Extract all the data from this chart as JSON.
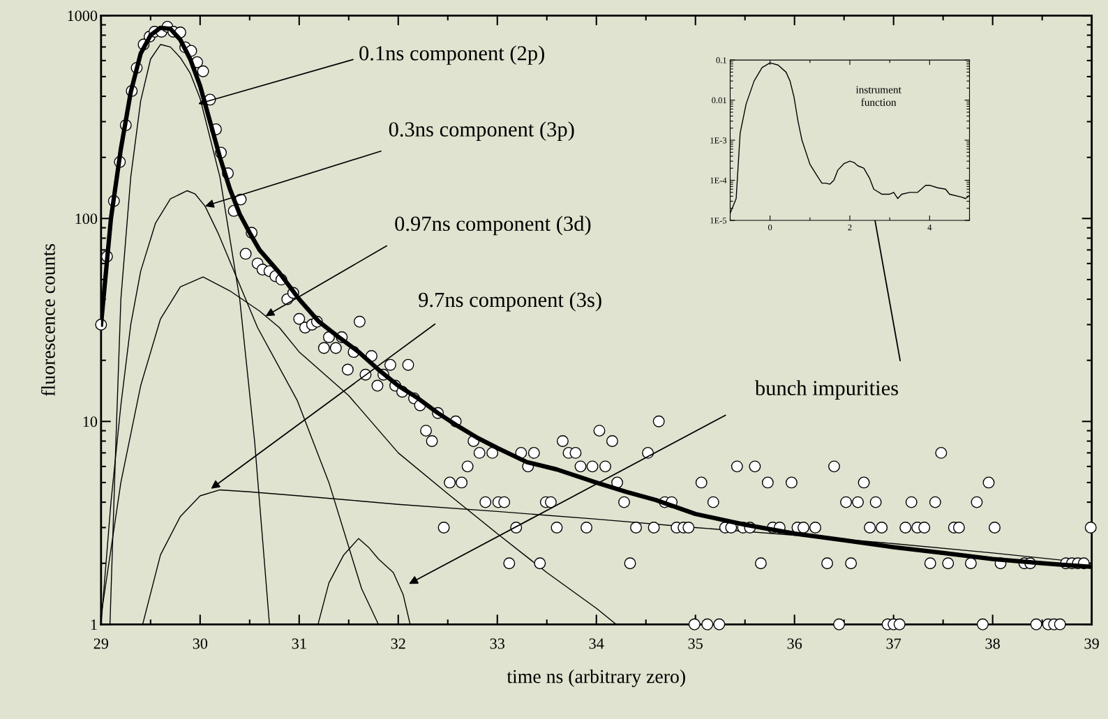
{
  "chart_data": [
    {
      "type": "scatter",
      "xlabel": "time ns (arbitrary zero)",
      "ylabel": "fluorescence counts",
      "log": "y",
      "xlim": [
        29,
        39
      ],
      "ylim": [
        1,
        1000
      ],
      "xticks": [
        29,
        30,
        31,
        32,
        33,
        34,
        35,
        36,
        37,
        38,
        39
      ],
      "yticks": [
        1,
        10,
        100,
        1000
      ],
      "grid": false,
      "legend": false,
      "marker": "circle",
      "series": [
        {
          "type": "scatter",
          "color": "#ffffff",
          "x": [
            29.0,
            29.06,
            29.13,
            29.19,
            29.25,
            29.31,
            29.36,
            29.43,
            29.49,
            29.54,
            29.61,
            29.67,
            29.73,
            29.8,
            29.85,
            29.91,
            29.97,
            30.03,
            30.1,
            30.16,
            30.21,
            30.28,
            30.34,
            30.41,
            30.46,
            30.52,
            30.58,
            30.63,
            30.7,
            30.76,
            30.82,
            30.88,
            30.94,
            31.0,
            31.06,
            31.13,
            31.18,
            31.25,
            31.3,
            31.37,
            31.43,
            31.49,
            31.55,
            31.61,
            31.67,
            31.73,
            31.79,
            31.85,
            31.92,
            31.97,
            32.04,
            32.1,
            32.16,
            32.22,
            32.28,
            32.34,
            32.4,
            32.46,
            32.52,
            32.58,
            32.64,
            32.7,
            32.76,
            32.82,
            32.88,
            32.95,
            33.01,
            33.07,
            33.12,
            33.19,
            33.24,
            33.31,
            33.37,
            33.43,
            33.49,
            33.54,
            33.6,
            33.66,
            33.72,
            33.79,
            33.84,
            33.9,
            33.96,
            34.03,
            34.09,
            34.16,
            34.21,
            34.28,
            34.34,
            34.4,
            34.52,
            34.58,
            34.63,
            34.69,
            34.76,
            34.81,
            34.88,
            34.93,
            34.99,
            35.06,
            35.12,
            35.18,
            35.24,
            35.3,
            35.36,
            35.42,
            35.48,
            35.55,
            35.6,
            35.66,
            35.73,
            35.78,
            35.85,
            35.97,
            36.03,
            36.09,
            36.21,
            36.33,
            36.4,
            36.45,
            36.52,
            36.57,
            36.64,
            36.7,
            36.76,
            36.82,
            36.88,
            36.94,
            37.0,
            37.06,
            37.12,
            37.18,
            37.24,
            37.31,
            37.37,
            37.42,
            37.48,
            37.55,
            37.61,
            37.66,
            37.78,
            37.84,
            37.9,
            37.96,
            38.02,
            38.08,
            38.32,
            38.38,
            38.44,
            38.56,
            38.62,
            38.68,
            38.74,
            38.8,
            38.86,
            38.92,
            38.99
          ],
          "values": [
            30,
            65,
            122,
            190,
            288,
            425,
            552,
            720,
            787,
            832,
            832,
            880,
            832,
            825,
            697,
            670,
            589,
            531,
            385,
            275,
            211,
            167,
            109,
            124,
            67,
            85,
            60,
            56,
            55,
            52,
            50,
            40,
            43,
            32,
            29,
            30,
            31,
            23,
            26,
            23,
            26,
            18,
            22,
            31,
            17,
            21,
            15,
            17,
            19,
            15,
            14,
            19,
            13,
            12,
            9,
            8,
            11,
            3,
            5,
            10,
            5,
            6,
            8,
            7,
            4,
            7,
            4,
            4,
            2,
            3,
            7,
            6,
            7,
            2,
            4,
            4,
            3,
            8,
            7,
            7,
            6,
            3,
            6,
            9,
            6,
            8,
            5,
            4,
            2,
            3,
            7,
            3,
            10,
            4,
            4,
            3,
            3,
            3,
            1,
            5,
            1,
            4,
            1,
            3,
            3,
            6,
            3,
            3,
            6,
            2,
            5,
            3,
            3,
            5,
            3,
            3,
            3,
            2,
            6,
            1,
            4,
            2,
            4,
            5,
            3,
            4,
            3,
            1,
            1,
            1,
            3,
            4,
            3,
            3,
            2,
            4,
            7,
            2,
            3,
            3,
            2,
            4,
            1,
            5,
            3,
            2,
            2,
            2,
            1,
            1,
            1,
            1,
            2,
            2,
            2,
            2,
            3
          ]
        },
        {
          "type": "line",
          "color": "#000000",
          "line_style": "solid",
          "marker": "none",
          "x": [
            29.0,
            29.1,
            29.2,
            29.3,
            29.4,
            29.5,
            29.6,
            29.7,
            29.8,
            29.9,
            30.0,
            30.1,
            30.2,
            30.3,
            30.4,
            30.5,
            30.6,
            30.8,
            31.0,
            31.2,
            31.4,
            31.6,
            31.8,
            32.0,
            32.2,
            32.4,
            32.6,
            32.8,
            33.0,
            33.3,
            33.6,
            34.0,
            34.3,
            34.6,
            35.0,
            35.5,
            36.0,
            36.5,
            37.0,
            37.5,
            38.0,
            38.5,
            39.0
          ],
          "values": [
            30,
            100,
            220,
            420,
            650,
            800,
            870,
            860,
            760,
            610,
            450,
            300,
            200,
            140,
            105,
            85,
            70,
            54,
            40,
            31,
            26,
            22,
            18,
            15,
            13,
            11,
            9.5,
            8.3,
            7.4,
            6.3,
            5.8,
            5.0,
            4.5,
            4.1,
            3.5,
            3.1,
            2.8,
            2.6,
            2.4,
            2.25,
            2.1,
            2.0,
            1.92
          ]
        },
        {
          "type": "line",
          "color": "#000000",
          "line_style": "solid",
          "marker": "none",
          "x": [
            29.09,
            29.15,
            29.2,
            29.3,
            29.4,
            29.5,
            29.6,
            29.7,
            29.8,
            29.9,
            30.0,
            30.2,
            30.4,
            30.55,
            30.7
          ],
          "values": [
            1,
            8,
            40,
            160,
            380,
            610,
            720,
            700,
            620,
            520,
            390,
            160,
            40,
            8,
            1
          ]
        },
        {
          "type": "line",
          "color": "#000000",
          "line_style": "solid",
          "marker": "none",
          "x": [
            29.0,
            29.1,
            29.2,
            29.3,
            29.4,
            29.55,
            29.7,
            29.87,
            29.95,
            30.05,
            30.18,
            30.58,
            30.98,
            31.3,
            31.63,
            31.8
          ],
          "values": [
            1,
            4,
            12,
            30,
            55,
            95,
            125,
            137,
            132,
            115,
            85,
            29,
            12.7,
            5,
            1.5,
            1
          ]
        },
        {
          "type": "line",
          "color": "#000000",
          "line_style": "solid",
          "marker": "none",
          "x": [
            29.0,
            29.2,
            29.4,
            29.6,
            29.8,
            30.03,
            30.3,
            30.6,
            30.8,
            31.0,
            31.5,
            32.0,
            32.5,
            33.0,
            33.5,
            34.0,
            34.2
          ],
          "values": [
            1.1,
            5,
            15,
            32,
            46,
            51.5,
            44,
            35,
            29,
            22,
            13.4,
            7,
            4.4,
            2.8,
            1.8,
            1.2,
            1
          ]
        },
        {
          "type": "line",
          "color": "#000000",
          "line_style": "solid",
          "marker": "none",
          "x": [
            29.42,
            29.6,
            29.8,
            30.0,
            30.2,
            30.5,
            31.0,
            31.5,
            32.0,
            33.0,
            34.0,
            35.0,
            36.0,
            37.0,
            38.0,
            39.0
          ],
          "values": [
            1,
            2.2,
            3.4,
            4.3,
            4.6,
            4.5,
            4.3,
            4.1,
            3.9,
            3.6,
            3.3,
            3.0,
            2.75,
            2.5,
            2.25,
            2.0
          ]
        },
        {
          "type": "line",
          "color": "#000000",
          "line_style": "solid",
          "marker": "none",
          "x": [
            31.19,
            31.3,
            31.45,
            31.6,
            31.7,
            31.8,
            31.95,
            32.05,
            32.12
          ],
          "values": [
            1,
            1.6,
            2.2,
            2.65,
            2.4,
            2.1,
            1.8,
            1.4,
            1
          ]
        }
      ],
      "annotations": [
        {
          "text": "0.1ns component (2p)",
          "x": 29.98,
          "y": 367
        },
        {
          "text": "0.3ns component (3p)",
          "x": 30.05,
          "y": 115
        },
        {
          "text": "0.97ns component (3d)",
          "x": 30.66,
          "y": 33
        },
        {
          "text": "9.7ns component (3s)",
          "x": 30.11,
          "y": 4.66
        },
        "bunch impurities"
      ]
    },
    {
      "type": "line",
      "log": "y",
      "xlim": [
        -1,
        5
      ],
      "ylim": [
        1e-05,
        0.1
      ],
      "xticks": [
        0,
        2,
        4
      ],
      "yticks": [
        {
          "value": 1e-05,
          "label": "1E-5"
        },
        {
          "value": 0.0001,
          "label": "1E-4"
        },
        {
          "value": 0.001,
          "label": "1E-3"
        },
        0.01,
        0.1
      ],
      "grid": false,
      "legend": false,
      "marker": "none",
      "line_style": "solid",
      "series": [
        {
          "color": "#000000",
          "x": [
            -1.0,
            -0.85,
            -0.75,
            -0.6,
            -0.4,
            -0.2,
            0.0,
            0.2,
            0.4,
            0.5,
            0.6,
            0.7,
            0.8,
            1.0,
            1.2,
            1.3,
            1.4,
            1.5,
            1.6,
            1.7,
            1.85,
            2.0,
            2.1,
            2.2,
            2.35,
            2.5,
            2.6,
            2.8,
            3.0,
            3.1,
            3.2,
            3.3,
            3.5,
            3.7,
            3.9,
            4.0,
            4.2,
            4.4,
            4.5,
            4.8,
            4.9,
            5.0
          ],
          "values": [
            1.5e-05,
            3.5e-05,
            0.0015,
            0.008,
            0.03,
            0.065,
            0.085,
            0.075,
            0.05,
            0.03,
            0.012,
            0.003,
            0.001,
            0.00025,
            0.00012,
            8.5e-05,
            8.5e-05,
            8e-05,
            0.0001,
            0.00018,
            0.00026,
            0.0003,
            0.00028,
            0.00023,
            0.0002,
            0.00011,
            6e-05,
            4.5e-05,
            4.5e-05,
            5e-05,
            3.5e-05,
            4.5e-05,
            5e-05,
            5e-05,
            7.5e-05,
            7.5e-05,
            6.5e-05,
            6e-05,
            4.5e-05,
            3.8e-05,
            3.5e-05,
            4.2e-05
          ]
        }
      ],
      "annotations": [
        "instrument\nfunction"
      ]
    }
  ]
}
